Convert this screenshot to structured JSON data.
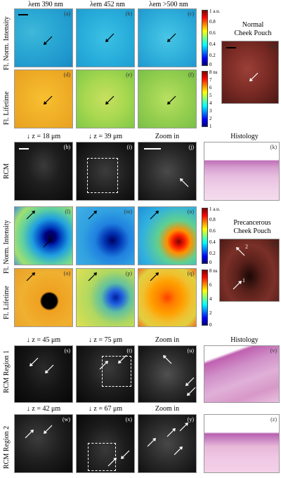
{
  "headers": {
    "col1": "λem 390 nm",
    "col2": "λem 452 nm",
    "col3": "λem >500 nm",
    "depth_h": "↓ z = 18 μm",
    "depth_i": "↓ z = 39 μm",
    "zoom_j": "Zoom in",
    "histology_k": "Histology",
    "depth_s": "↓ z = 45 μm",
    "depth_t": "↓ z = 75 μm",
    "zoom_u": "Zoom in",
    "histology_v": "Histology",
    "depth_w": "↓ z = 42 μm",
    "depth_x": "↓ z = 67 μm",
    "zoom_y": "Zoom in"
  },
  "row_labels": {
    "norm_intensity": "Fl. Norm. Intensity",
    "lifetime": "Fl. Lifetime",
    "rcm": "RCM",
    "norm_intensity2": "Fl. Norm. Intensity",
    "lifetime2": "Fl. Lifetime",
    "rcm_r1": "RCM  Region 1",
    "rcm_r2": "RCM  Region 2"
  },
  "side_titles": {
    "normal": "Normal\nCheek Pouch",
    "precancerous": "Precancerous\nCheek Pouch"
  },
  "panel_letters": [
    "(a)",
    "(b)",
    "(c)",
    "(d)",
    "(e)",
    "(f)",
    "(g)",
    "(h)",
    "(i)",
    "(j)",
    "(k)",
    "(l)",
    "(m)",
    "(n)",
    "(o)",
    "(p)",
    "(q)",
    "(r)",
    "(s)",
    "(t)",
    "(u)",
    "(v)",
    "(w)",
    "(x)",
    "(y)",
    "(z)"
  ],
  "colorbars": {
    "intensity": {
      "unit": "1 a.u.",
      "ticks": [
        "0.8",
        "0.6",
        "0.4",
        "0.2",
        "0"
      ]
    },
    "lifetime": {
      "unit": "8 ns",
      "ticks": [
        "7",
        "6",
        "5",
        "4",
        "3",
        "2",
        "1"
      ]
    },
    "intensity2": {
      "unit": "1 a.u.",
      "ticks": [
        "0.8",
        "0.6",
        "0.4",
        "0.2",
        "0"
      ]
    },
    "lifetime2": {
      "unit": "8 ns",
      "ticks": [
        "6",
        "4",
        "2",
        "0"
      ]
    }
  },
  "arrow_labels": {
    "one": "1",
    "two": "2"
  },
  "colors": {
    "jet_gradient": [
      "#7f0000",
      "#ff0000",
      "#ff8000",
      "#ffff00",
      "#80ff80",
      "#00ffff",
      "#0080ff",
      "#0000ff",
      "#00007f"
    ],
    "tissue_red": "#7a2a24",
    "histology_pink": "#d9a9cf"
  }
}
